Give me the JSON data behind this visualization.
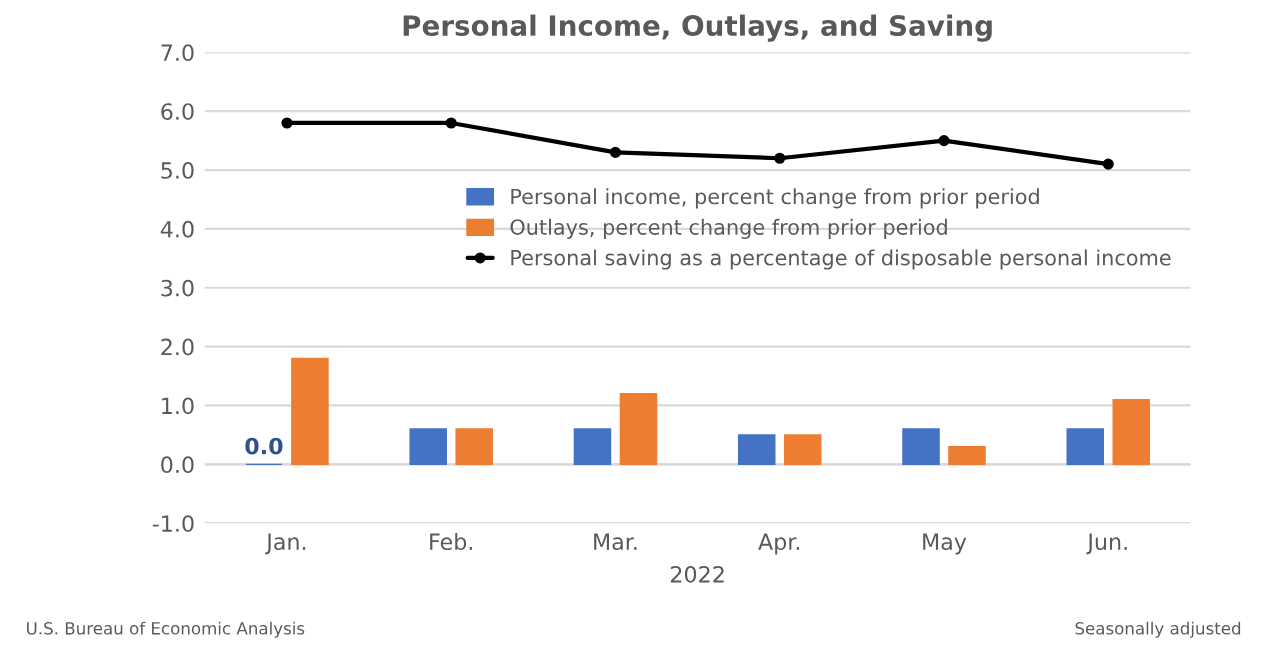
{
  "chart_data": {
    "type": "bar",
    "title": "Personal Income, Outlays, and Saving",
    "xlabel": "2022",
    "categories": [
      "Jan.",
      "Feb.",
      "Mar.",
      "Apr.",
      "May",
      "Jun."
    ],
    "series": [
      {
        "name": "Personal income, percent change from prior period",
        "color": "#4472c4",
        "values": [
          0.0,
          0.6,
          0.6,
          0.5,
          0.6,
          0.6
        ],
        "value_labels": [
          "0.0",
          null,
          null,
          null,
          null,
          null
        ]
      },
      {
        "name": "Outlays, percent change from prior period",
        "color": "#ed7d31",
        "values": [
          1.8,
          0.6,
          1.2,
          0.5,
          0.3,
          1.1
        ]
      },
      {
        "name": "Personal saving as a percentage of disposable personal income",
        "type": "line",
        "color": "#000000",
        "marker": "circle",
        "values": [
          5.8,
          5.8,
          5.3,
          5.2,
          5.5,
          5.1
        ]
      }
    ],
    "ylim": [
      -1.0,
      7.0
    ],
    "yticks": [
      {
        "value": -1,
        "label": "-1.0"
      },
      {
        "value": 0,
        "label": "0.0"
      },
      {
        "value": 1,
        "label": "1.0"
      },
      {
        "value": 2,
        "label": "2.0"
      },
      {
        "value": 3,
        "label": "3.0"
      },
      {
        "value": 4,
        "label": "4.0"
      },
      {
        "value": 5,
        "label": "5.0"
      },
      {
        "value": 6,
        "label": "6.0"
      },
      {
        "value": 7,
        "label": "7.0"
      }
    ],
    "grid": "y",
    "legend": "center right",
    "annotations": [
      "U.S. Bureau of Economic Analysis",
      "Seasonally adjusted"
    ]
  }
}
